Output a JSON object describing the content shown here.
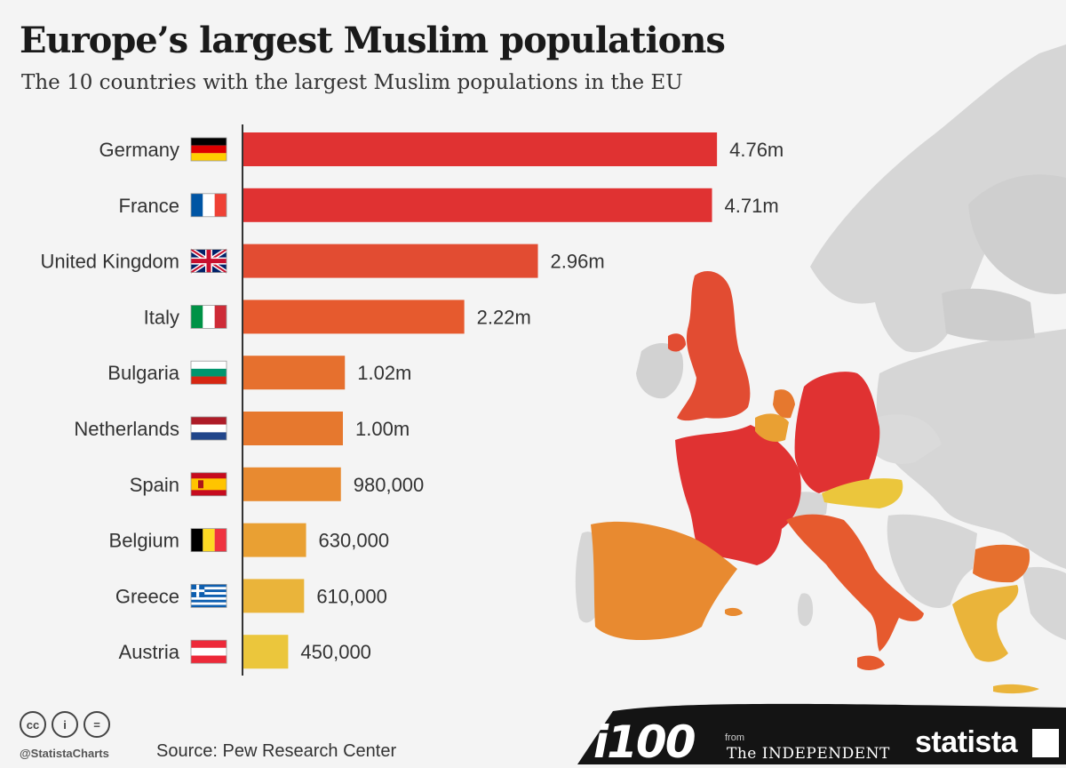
{
  "header": {
    "title": "Europe’s largest Muslim populations",
    "subtitle": "The 10 countries with the largest Muslim populations in the EU"
  },
  "chart_data": {
    "type": "bar",
    "orientation": "horizontal",
    "title": "Europe’s largest Muslim populations",
    "subtitle": "The 10 countries with the largest Muslim populations in the EU",
    "categories": [
      "Germany",
      "France",
      "United Kingdom",
      "Italy",
      "Bulgaria",
      "Netherlands",
      "Spain",
      "Belgium",
      "Greece",
      "Austria"
    ],
    "values": [
      4760000,
      4710000,
      2960000,
      2220000,
      1020000,
      1000000,
      980000,
      630000,
      610000,
      450000
    ],
    "value_labels": [
      "4.76m",
      "4.71m",
      "2.96m",
      "2.22m",
      "1.02m",
      "1.00m",
      "980,000",
      "630,000",
      "610,000",
      "450,000"
    ],
    "bar_colors": [
      "#e03232",
      "#e03232",
      "#e24c32",
      "#e65a2e",
      "#e6702e",
      "#e6782e",
      "#e88a30",
      "#e9a033",
      "#eab43a",
      "#ebc63c"
    ],
    "flags": [
      "germany-flag",
      "france-flag",
      "united-kingdom-flag",
      "italy-flag",
      "bulgaria-flag",
      "netherlands-flag",
      "spain-flag",
      "belgium-flag",
      "greece-flag",
      "austria-flag"
    ],
    "xlabel": "",
    "ylabel": "",
    "xlim": [
      0,
      5000000
    ],
    "grid": false,
    "legend": "none"
  },
  "map": {
    "highlight_colors": {
      "Germany": "#e03232",
      "France": "#e03232",
      "United Kingdom": "#e24c32",
      "Italy": "#e65a2e",
      "Bulgaria": "#e6702e",
      "Netherlands": "#e6782e",
      "Spain": "#e88a30",
      "Belgium": "#e9a033",
      "Greece": "#eab43a",
      "Austria": "#ebc63c"
    },
    "base_color": "#d6d6d6",
    "sea_color": "#f4f4f4"
  },
  "footer": {
    "license_icons": [
      "cc-icon",
      "attribution-icon",
      "no-derivatives-icon"
    ],
    "license_glyphs": [
      "cc",
      "i",
      "="
    ],
    "handle": "@StatistaCharts",
    "source": "Source: Pew Research Center",
    "logo_i100": "i100",
    "from_label": "from",
    "independent": "The INDEPENDENT",
    "statista": "statista",
    "bar_color": "#141414"
  },
  "colors": {
    "background": "#f4f4f4",
    "text": "#333333",
    "axis": "#333333"
  }
}
